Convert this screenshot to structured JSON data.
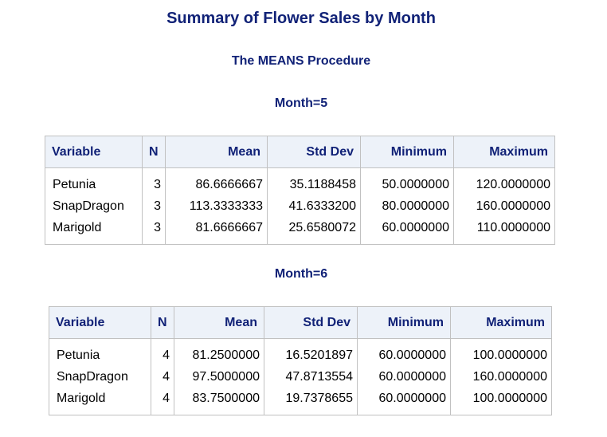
{
  "report": {
    "title": "Summary of Flower Sales by Month",
    "procedure": "The MEANS Procedure"
  },
  "columns": [
    "Variable",
    "N",
    "Mean",
    "Std Dev",
    "Minimum",
    "Maximum"
  ],
  "groups": [
    {
      "label": "Month=5",
      "rows": [
        {
          "variable": "Petunia",
          "n": "3",
          "mean": "86.6666667",
          "std_dev": "35.1188458",
          "minimum": "50.0000000",
          "maximum": "120.0000000"
        },
        {
          "variable": "SnapDragon",
          "n": "3",
          "mean": "113.3333333",
          "std_dev": "41.6333200",
          "minimum": "80.0000000",
          "maximum": "160.0000000"
        },
        {
          "variable": "Marigold",
          "n": "3",
          "mean": "81.6666667",
          "std_dev": "25.6580072",
          "minimum": "60.0000000",
          "maximum": "110.0000000"
        }
      ]
    },
    {
      "label": "Month=6",
      "rows": [
        {
          "variable": "Petunia",
          "n": "4",
          "mean": "81.2500000",
          "std_dev": "16.5201897",
          "minimum": "60.0000000",
          "maximum": "100.0000000"
        },
        {
          "variable": "SnapDragon",
          "n": "4",
          "mean": "97.5000000",
          "std_dev": "47.8713554",
          "minimum": "60.0000000",
          "maximum": "160.0000000"
        },
        {
          "variable": "Marigold",
          "n": "4",
          "mean": "83.7500000",
          "std_dev": "19.7378655",
          "minimum": "60.0000000",
          "maximum": "100.0000000"
        }
      ]
    }
  ],
  "colors": {
    "heading_text": "#112277",
    "header_background": "#edf2f9",
    "border": "#c1c1c1"
  }
}
